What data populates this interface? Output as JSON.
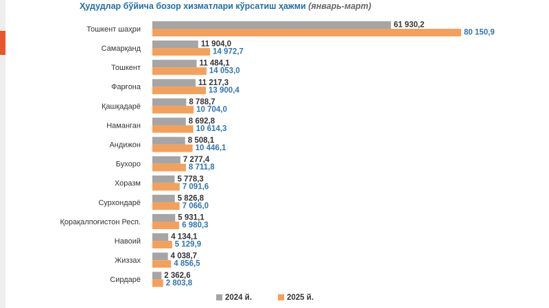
{
  "chart_data": {
    "type": "hbar",
    "title": "Ҳудудлар бўйича бозор хизматлари кўрсатиш ҳажми",
    "subtitle": "(январь-март)",
    "categories": [
      "Тошкент шаҳри",
      "Самарқанд",
      "Тошкент",
      "Фарғона",
      "Қашқадарё",
      "Наманган",
      "Андижон",
      "Бухоро",
      "Хоразм",
      "Сурхондарё",
      "Қорақалпоғистон Респ.",
      "Навоий",
      "Жиззах",
      "Сирдарё"
    ],
    "series": [
      {
        "name": "2024 й.",
        "color": "#a5a5a5",
        "label_color": "#333333",
        "values": [
          61930.2,
          11904.0,
          11484.1,
          11217.3,
          8788.7,
          8692.8,
          8508.1,
          7277.4,
          5778.3,
          5826.8,
          5931.1,
          4134.1,
          4038.7,
          2362.6
        ],
        "value_labels": [
          "61 930,2",
          "11 904,0",
          "11 484,1",
          "11 217,3",
          "8 788,7",
          "8 692,8",
          "8 508,1",
          "7 277,4",
          "5 778,3",
          "5 826,8",
          "5 931,1",
          "4 134,1",
          "4 038,7",
          "2 362,6"
        ]
      },
      {
        "name": "2025 й.",
        "color": "#f5a05a",
        "label_color": "#2e75b6",
        "values": [
          80150.9,
          14972.7,
          14053.0,
          13900.4,
          10704.0,
          10614.3,
          10446.1,
          8711.8,
          7091.6,
          7066.0,
          6980.3,
          5129.9,
          4856.5,
          2803.8
        ],
        "value_labels": [
          "80 150,9",
          "14 972,7",
          "14 053,0",
          "13 900,4",
          "10 704,0",
          "10 614,3",
          "10 446,1",
          "8 711,8",
          "7 091,6",
          "7 066,0",
          "6 980,3",
          "5 129,9",
          "4 856,5",
          "2 803,8"
        ]
      }
    ]
  }
}
